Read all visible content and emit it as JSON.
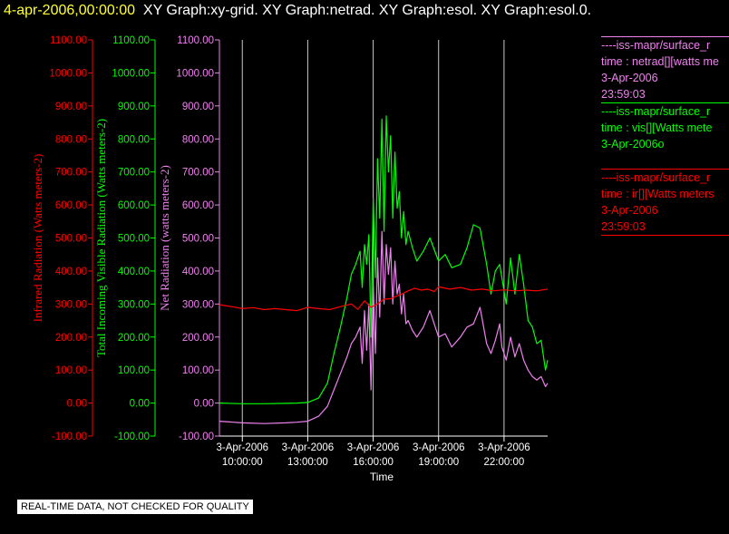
{
  "header": {
    "date": "4-apr-2006,00:00:00",
    "titles": "XY Graph:xy-grid.  XY Graph:netrad.  XY Graph:esol.  XY Graph:esol.0."
  },
  "footer": "REAL-TIME DATA, NOT CHECKED FOR QUALITY",
  "colors": {
    "background": "#000000",
    "red": "#ff0000",
    "green": "#00ff00",
    "violet": "#ee82ee",
    "grid": "#c8c8c8"
  },
  "legend": [
    {
      "lines": [
        "----iss-mapr/surface_r",
        "time : netrad[][watts me",
        "3-Apr-2006",
        "23:59:03"
      ],
      "color": "#ee82ee"
    },
    {
      "lines": [
        "----iss-mapr/surface_r",
        "time : vis[][Watts mete",
        "3-Apr-2006o"
      ],
      "color": "#00ff00"
    },
    {
      "lines": [
        "----iss-mapr/surface_r",
        "time : ir[][Watts meters",
        "3-Apr-2006",
        "23:59:03"
      ],
      "color": "#ff0000"
    }
  ],
  "chart_data": {
    "type": "line",
    "xlabel": "Time",
    "x_ticks": [
      {
        "hour": 10,
        "label1": "3-Apr-2006",
        "label2": "10:00:00"
      },
      {
        "hour": 13,
        "label1": "3-Apr-2006",
        "label2": "13:00:00"
      },
      {
        "hour": 16,
        "label1": "3-Apr-2006",
        "label2": "16:00:00"
      },
      {
        "hour": 19,
        "label1": "3-Apr-2006",
        "label2": "19:00:00"
      },
      {
        "hour": 22,
        "label1": "3-Apr-2006",
        "label2": "22:00:00"
      }
    ],
    "xlim": [
      8.95,
      24
    ],
    "ylim": [
      -100,
      1100
    ],
    "y_ticks": [
      "-100.00",
      "0.00",
      "100.00",
      "200.00",
      "300.00",
      "400.00",
      "500.00",
      "600.00",
      "700.00",
      "800.00",
      "900.00",
      "1000.00",
      "1100.00"
    ],
    "axes": [
      {
        "label": "Infrared Radiation (Watts meters-2)",
        "color": "#ff0000"
      },
      {
        "label": "Total Incoming Visible Radiation (Watts meters-2)",
        "color": "#00ff00"
      },
      {
        "label": "Net Radiation (watts meters-2)",
        "color": "#ee82ee"
      }
    ],
    "series": [
      {
        "color": "#00ff00",
        "x": [
          8.95,
          10,
          11,
          12,
          12.5,
          13,
          13.5,
          13.9,
          14.2,
          14.5,
          14.8,
          15.0,
          15.2,
          15.4,
          15.5,
          15.6,
          15.7,
          15.8,
          15.9,
          16.0,
          16.1,
          16.2,
          16.3,
          16.4,
          16.5,
          16.6,
          16.7,
          16.8,
          16.9,
          17.0,
          17.1,
          17.2,
          17.3,
          17.4,
          17.5,
          17.6,
          17.8,
          18.0,
          18.3,
          18.6,
          19.0,
          19.3,
          19.6,
          20.0,
          20.3,
          20.6,
          20.9,
          21.2,
          21.4,
          21.6,
          21.8,
          21.9,
          22.1,
          22.3,
          22.5,
          22.7,
          22.9,
          23.1,
          23.3,
          23.5,
          23.7,
          23.9,
          24.0
        ],
        "values": [
          0,
          -2,
          -2,
          -1,
          0,
          2,
          15,
          60,
          150,
          230,
          320,
          390,
          420,
          460,
          350,
          480,
          420,
          510,
          200,
          620,
          380,
          740,
          560,
          860,
          520,
          870,
          700,
          810,
          560,
          760,
          590,
          640,
          500,
          580,
          480,
          520,
          470,
          430,
          460,
          500,
          430,
          450,
          410,
          420,
          470,
          540,
          530,
          420,
          330,
          400,
          420,
          380,
          300,
          440,
          330,
          450,
          360,
          250,
          230,
          180,
          190,
          100,
          130
        ]
      },
      {
        "color": "#ee82ee",
        "x": [
          8.95,
          10,
          11,
          12,
          12.5,
          13,
          13.5,
          13.9,
          14.2,
          14.5,
          14.8,
          15.0,
          15.2,
          15.4,
          15.5,
          15.6,
          15.7,
          15.8,
          15.9,
          16.0,
          16.1,
          16.2,
          16.3,
          16.4,
          16.5,
          16.6,
          16.7,
          16.8,
          16.9,
          17.0,
          17.1,
          17.2,
          17.3,
          17.4,
          17.5,
          17.6,
          17.8,
          18.0,
          18.3,
          18.6,
          19.0,
          19.3,
          19.6,
          20.0,
          20.3,
          20.6,
          20.9,
          21.2,
          21.4,
          21.6,
          21.8,
          21.9,
          22.1,
          22.3,
          22.5,
          22.7,
          22.9,
          23.1,
          23.3,
          23.5,
          23.7,
          23.9,
          24.0
        ],
        "values": [
          -55,
          -60,
          -62,
          -60,
          -58,
          -55,
          -40,
          -10,
          40,
          90,
          140,
          180,
          200,
          230,
          120,
          280,
          160,
          300,
          40,
          360,
          150,
          440,
          260,
          520,
          300,
          480,
          390,
          470,
          300,
          430,
          330,
          360,
          270,
          330,
          240,
          250,
          220,
          200,
          230,
          280,
          200,
          210,
          170,
          200,
          230,
          240,
          290,
          180,
          150,
          190,
          240,
          170,
          130,
          200,
          140,
          180,
          130,
          100,
          80,
          70,
          80,
          50,
          60
        ]
      },
      {
        "color": "#ff0000",
        "x": [
          8.95,
          9.5,
          10,
          10.5,
          11,
          11.5,
          12,
          12.5,
          13,
          13.5,
          14,
          14.5,
          15,
          15.3,
          15.6,
          15.9,
          16.2,
          16.5,
          16.8,
          17.0,
          17.3,
          17.6,
          17.9,
          18.2,
          18.5,
          18.8,
          19.0,
          19.5,
          20,
          20.5,
          21,
          21.5,
          22,
          22.5,
          23,
          23.5,
          24.0
        ],
        "values": [
          298,
          292,
          286,
          289,
          283,
          286,
          283,
          280,
          290,
          286,
          283,
          292,
          300,
          284,
          310,
          290,
          300,
          315,
          316,
          322,
          330,
          340,
          348,
          342,
          345,
          338,
          352,
          345,
          350,
          342,
          345,
          340,
          343,
          340,
          342,
          340,
          345
        ]
      }
    ]
  }
}
